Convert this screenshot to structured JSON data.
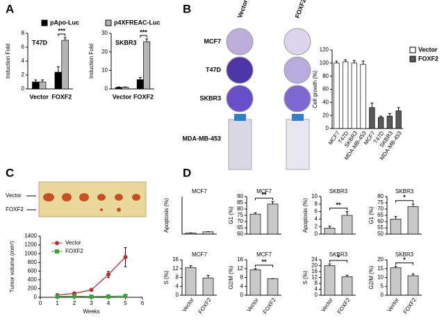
{
  "images": {
    "b_columns": [
      "Vector",
      "FOXF2"
    ],
    "b_rows": [
      "MCF7",
      "T47D",
      "SKBR3",
      "MDA-MB-453"
    ],
    "c_labels": [
      "Vector",
      "FOXF2"
    ]
  },
  "chart_data": [
    {
      "type": "bar",
      "panel": "A",
      "title": "T47D",
      "ylabel": "Induction Fold",
      "categories": [
        "Vector",
        "FOXF2"
      ],
      "legend": "top",
      "series": [
        {
          "name": "pApo-Luc",
          "color": "#000000",
          "values": [
            1.0,
            2.4
          ],
          "errors": [
            0.3,
            0.8
          ]
        },
        {
          "name": "p4XFREAC-Luc",
          "color": "#b4b4b4",
          "values": [
            1.0,
            7.0
          ],
          "errors": [
            0.3,
            0.4
          ]
        }
      ],
      "ylim": [
        0,
        8
      ],
      "yticks": [
        0,
        2,
        4,
        6,
        8
      ],
      "annotation": "***"
    },
    {
      "type": "bar",
      "title": "SKBR3",
      "ylabel": "Induction Fold",
      "categories": [
        "Vector",
        "FOXF2"
      ],
      "series": [
        {
          "color": "#000000",
          "values": [
            0.8,
            5.0
          ],
          "errors": [
            0.3,
            1.2
          ]
        },
        {
          "color": "#b4b4b4",
          "values": [
            0.9,
            25.5
          ],
          "errors": [
            0.2,
            1.5
          ]
        }
      ],
      "ylim": [
        0,
        30
      ],
      "yticks": [
        0,
        10,
        20,
        30
      ],
      "annotation": "***"
    },
    {
      "type": "bar",
      "panel": "B",
      "ylabel": "Cell growth (%)",
      "legend": "right",
      "categories": [
        "MCF7",
        "T47D",
        "SKBR3",
        "MDA-MB-453",
        "MCF7",
        "T47D",
        "SKBR3",
        "MDA-MB-453"
      ],
      "series": [
        {
          "name": "Vector",
          "color": "#ffffff",
          "values": [
            100,
            102,
            100,
            98,
            null,
            null,
            null,
            null
          ],
          "errors": [
            3,
            3,
            4,
            5,
            null,
            null,
            null,
            null
          ]
        },
        {
          "name": "FOXF2",
          "color": "#595959",
          "values": [
            null,
            null,
            null,
            null,
            32,
            17,
            19,
            27
          ],
          "errors": [
            null,
            null,
            null,
            null,
            7,
            2,
            4,
            5
          ]
        }
      ],
      "ylim": [
        0,
        120
      ],
      "yticks": [
        0,
        20,
        40,
        60,
        80,
        100,
        120
      ]
    },
    {
      "type": "line",
      "panel": "C",
      "ylabel": "Tumor volume (mm³)",
      "xlabel": "Weeks",
      "legend": "upper left",
      "x": [
        1,
        2,
        3,
        4,
        5
      ],
      "series": [
        {
          "name": "Vector",
          "color": "#c0272d",
          "marker": "circle",
          "values": [
            50,
            90,
            170,
            520,
            920
          ],
          "errors": [
            15,
            20,
            20,
            70,
            220
          ]
        },
        {
          "name": "FOXF2",
          "color": "#3aa335",
          "marker": "square",
          "values": [
            20,
            25,
            15,
            20,
            30
          ],
          "errors": [
            5,
            5,
            5,
            5,
            5
          ]
        }
      ],
      "xlim": [
        0,
        6
      ],
      "xticks": [
        0,
        1,
        2,
        3,
        4,
        5,
        6
      ],
      "ylim": [
        0,
        1400
      ],
      "yticks": [
        0,
        200,
        400,
        600,
        800,
        1000,
        1200,
        1400
      ]
    },
    {
      "type": "bar",
      "panel": "D",
      "title": "MCF7",
      "ylabel": "Apoptosis (%)",
      "series": [
        {
          "color": "#c8c8c8",
          "values": [
            0.3,
            0.6
          ],
          "errors": [
            0.05,
            0.05
          ]
        }
      ],
      "ylim": [
        0,
        10
      ],
      "yticks": []
    },
    {
      "type": "bar",
      "title": "MCF7",
      "ylabel": "G1 (%)",
      "series": [
        {
          "color": "#c8c8c8",
          "values": [
            76,
            84
          ],
          "errors": [
            1,
            2
          ]
        }
      ],
      "ylim": [
        60,
        90
      ],
      "yticks": [
        60,
        65,
        70,
        75,
        80,
        85,
        90
      ],
      "annotation": "**"
    },
    {
      "type": "bar",
      "title": "SKBR3",
      "ylabel": "Apoptosis (%)",
      "series": [
        {
          "color": "#c8c8c8",
          "values": [
            1.6,
            5.0
          ],
          "errors": [
            0.5,
            1.0
          ]
        }
      ],
      "ylim": [
        0,
        10
      ],
      "yticks": [
        0,
        2,
        4,
        6,
        8,
        10
      ],
      "annotation": "**"
    },
    {
      "type": "bar",
      "title": "SKBR3",
      "ylabel": "G1 (%)",
      "series": [
        {
          "color": "#c8c8c8",
          "values": [
            62,
            72
          ],
          "errors": [
            2,
            2
          ]
        }
      ],
      "ylim": [
        50,
        80
      ],
      "yticks": [
        50,
        55,
        60,
        65,
        70,
        75,
        80
      ],
      "annotation": "*"
    },
    {
      "type": "bar",
      "title": "MCF7",
      "ylabel": "S (%)",
      "categories": [
        "Vector",
        "FOXF2"
      ],
      "series": [
        {
          "color": "#c8c8c8",
          "values": [
            12.5,
            7.8
          ],
          "errors": [
            0.8,
            1.2
          ]
        }
      ],
      "ylim": [
        0,
        16
      ],
      "yticks": [
        0,
        4,
        8,
        12,
        16
      ]
    },
    {
      "type": "bar",
      "title": "MCF7",
      "ylabel": "G2/M (%)",
      "categories": [
        "Vector",
        "FOXF2"
      ],
      "series": [
        {
          "color": "#c8c8c8",
          "values": [
            11.5,
            7.5
          ],
          "errors": [
            0.5,
            0
          ]
        }
      ],
      "ylim": [
        0,
        16
      ],
      "yticks": [
        0,
        4,
        8,
        12,
        16
      ],
      "annotation": "**"
    },
    {
      "type": "bar",
      "title": "SKBR3",
      "ylabel": "S (%)",
      "categories": [
        "Vector",
        "FOXF2"
      ],
      "series": [
        {
          "color": "#c8c8c8",
          "values": [
            20,
            12.5
          ],
          "errors": [
            1.2,
            1
          ]
        }
      ],
      "ylim": [
        0,
        24
      ],
      "yticks": [
        0,
        4,
        8,
        12,
        16,
        20,
        24
      ],
      "annotation": "*"
    },
    {
      "type": "bar",
      "title": "SKBR3",
      "ylabel": "G2/M (%)",
      "categories": [
        "Vector",
        "FOXF2"
      ],
      "series": [
        {
          "color": "#c8c8c8",
          "values": [
            15.5,
            11
          ],
          "errors": [
            0.8,
            1
          ]
        }
      ],
      "ylim": [
        0,
        20
      ],
      "yticks": [
        0,
        5,
        10,
        15,
        20
      ],
      "annotation": "*"
    }
  ]
}
